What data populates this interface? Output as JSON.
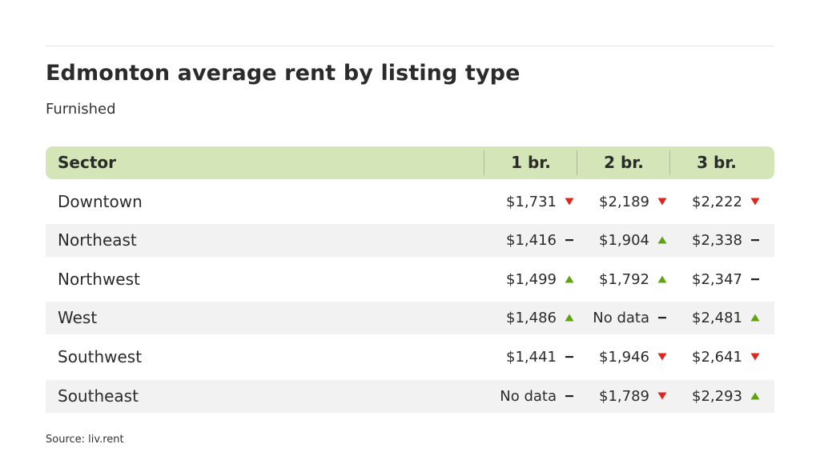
{
  "chart_data": {
    "type": "table",
    "title": "Edmonton average rent by listing type",
    "subtitle": "Furnished",
    "source": "Source: liv.rent",
    "columns": [
      "Sector",
      "1 br.",
      "2 br.",
      "3 br."
    ],
    "rows": [
      {
        "sector": "Downtown",
        "cells": [
          {
            "value": "$1,731",
            "trend": "down"
          },
          {
            "value": "$2,189",
            "trend": "down"
          },
          {
            "value": "$2,222",
            "trend": "down"
          }
        ]
      },
      {
        "sector": "Northeast",
        "cells": [
          {
            "value": "$1,416",
            "trend": "flat"
          },
          {
            "value": "$1,904",
            "trend": "up"
          },
          {
            "value": "$2,338",
            "trend": "flat"
          }
        ]
      },
      {
        "sector": "Northwest",
        "cells": [
          {
            "value": "$1,499",
            "trend": "up"
          },
          {
            "value": "$1,792",
            "trend": "up"
          },
          {
            "value": "$2,347",
            "trend": "flat"
          }
        ]
      },
      {
        "sector": "West",
        "cells": [
          {
            "value": "$1,486",
            "trend": "up"
          },
          {
            "value": "No data",
            "trend": "flat"
          },
          {
            "value": "$2,481",
            "trend": "up"
          }
        ]
      },
      {
        "sector": "Southwest",
        "cells": [
          {
            "value": "$1,441",
            "trend": "flat"
          },
          {
            "value": "$1,946",
            "trend": "down"
          },
          {
            "value": "$2,641",
            "trend": "down"
          }
        ]
      },
      {
        "sector": "Southeast",
        "cells": [
          {
            "value": "No data",
            "trend": "flat"
          },
          {
            "value": "$1,789",
            "trend": "down"
          },
          {
            "value": "$2,293",
            "trend": "up"
          }
        ]
      }
    ],
    "colors": {
      "header_bg": "#d4e5b8",
      "alt_row_bg": "#f2f2f2",
      "up": "#5fa312",
      "down": "#e0261c",
      "flat": "#222222"
    }
  }
}
